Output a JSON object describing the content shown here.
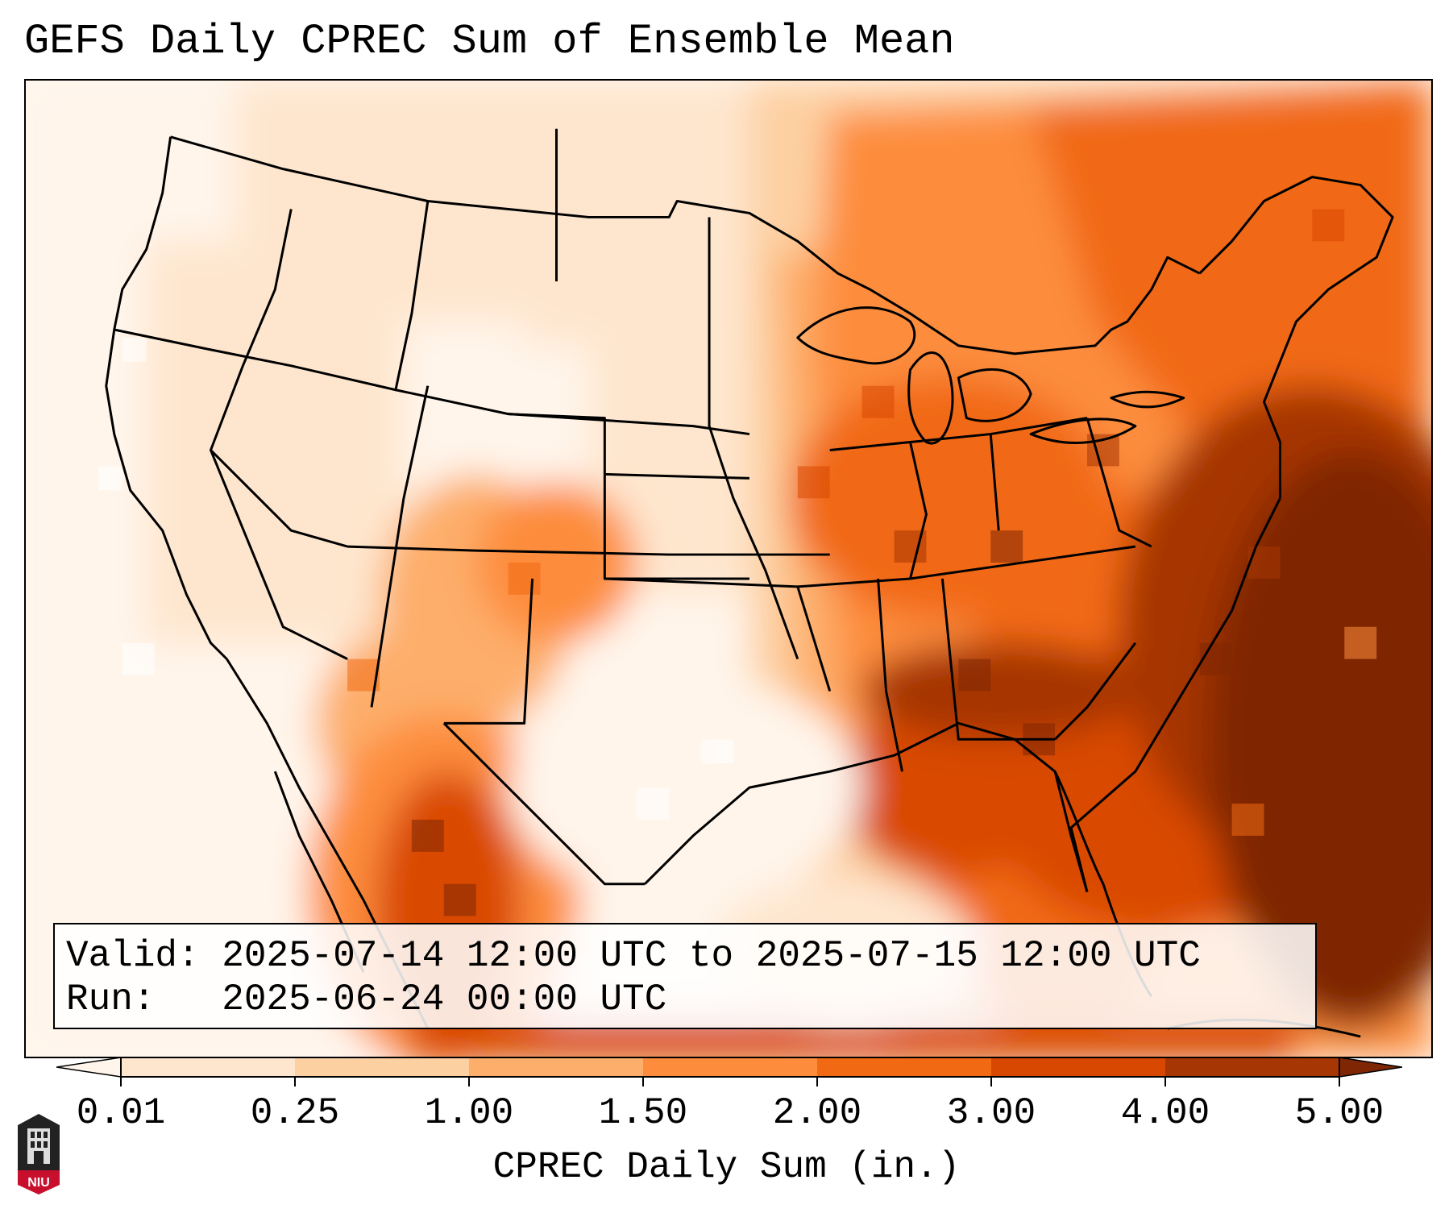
{
  "title": "GEFS Daily CPREC Sum of Ensemble Mean",
  "info_box": {
    "valid_label": "Valid:",
    "valid_value": "2025-07-14 12:00 UTC to 2025-07-15 12:00 UTC",
    "run_label": "Run:",
    "run_value": "2025-06-24 00:00 UTC"
  },
  "colorbar": {
    "label": "CPREC Daily Sum (in.)",
    "ticks": [
      "0.01",
      "0.25",
      "1.00",
      "1.50",
      "2.00",
      "3.00",
      "4.00",
      "5.00"
    ],
    "colors": [
      "#fff5eb",
      "#fee6ce",
      "#fdd0a2",
      "#fdae6b",
      "#fd8d3c",
      "#f16913",
      "#d94801",
      "#a63603",
      "#7f2704"
    ]
  },
  "logo": {
    "text": "NIU",
    "icon": "university-tower-icon",
    "color": "#c8102e"
  },
  "map": {
    "projection": "lambert-conformal",
    "region": "Continental United States",
    "boundaries": [
      "states",
      "coastlines",
      "countries"
    ]
  }
}
